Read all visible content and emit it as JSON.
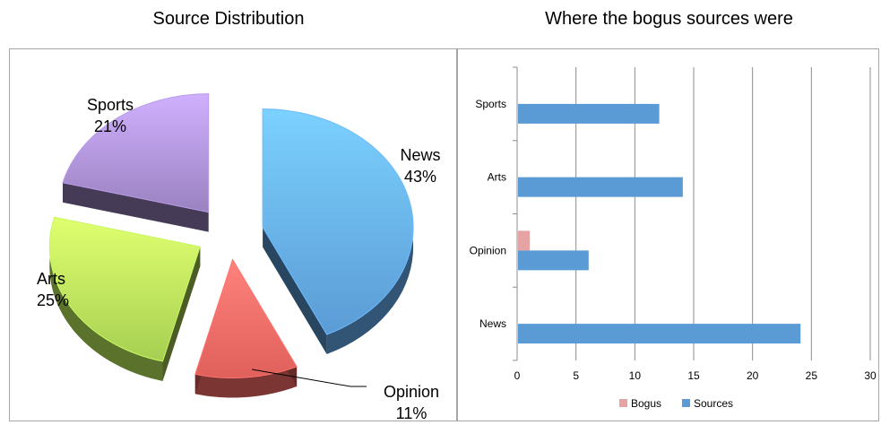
{
  "chart_data": [
    {
      "type": "pie",
      "title": "Source Distribution",
      "style": "3d-exploded",
      "slices": [
        {
          "label": "News",
          "value": 43,
          "pct_label": "43%",
          "color": "#5b9bd5"
        },
        {
          "label": "Opinion",
          "value": 11,
          "pct_label": "11%",
          "color": "#e0605c"
        },
        {
          "label": "Arts",
          "value": 25,
          "pct_label": "25%",
          "color": "#a6cf52"
        },
        {
          "label": "Sports",
          "value": 21,
          "pct_label": "21%",
          "color": "#9a82c0"
        }
      ]
    },
    {
      "type": "bar",
      "orientation": "horizontal",
      "title": "Where the bogus sources were",
      "categories": [
        "News",
        "Opinion",
        "Arts",
        "Sports"
      ],
      "series": [
        {
          "name": "Bogus",
          "values": [
            0,
            1,
            0,
            0
          ],
          "color": "#e6a3a3"
        },
        {
          "name": "Sources",
          "values": [
            24,
            6,
            14,
            12
          ],
          "color": "#5b9bd5"
        }
      ],
      "xlim": [
        0,
        30
      ],
      "xticks": [
        0,
        5,
        10,
        15,
        20,
        25,
        30
      ],
      "grid": true,
      "legend": "bottom"
    }
  ]
}
